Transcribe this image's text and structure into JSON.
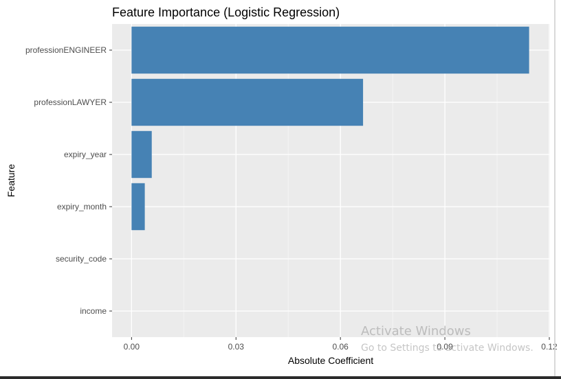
{
  "chart_data": {
    "type": "bar",
    "orientation": "horizontal",
    "title": "Feature Importance (Logistic Regression)",
    "xlabel": "Absolute Coefficient",
    "ylabel": "Feature",
    "categories": [
      "professionENGINEER",
      "professionLAWYER",
      "expiry_year",
      "expiry_month",
      "security_code",
      "income"
    ],
    "values": [
      0.1142,
      0.0665,
      0.0058,
      0.0038,
      0.0,
      0.0
    ],
    "xlim": [
      -0.0056,
      0.1202
    ],
    "xticks": [
      0.0,
      0.03,
      0.06,
      0.09,
      0.12
    ],
    "xtick_labels": [
      "0.00",
      "0.03",
      "0.06",
      "0.09",
      "0.12"
    ],
    "bar_color": "#4682b4",
    "panel_color": "#ebebeb",
    "grid": true,
    "legend": "none"
  },
  "watermark": {
    "title": "Activate Windows",
    "subtitle": "Go to Settings to activate Windows."
  }
}
